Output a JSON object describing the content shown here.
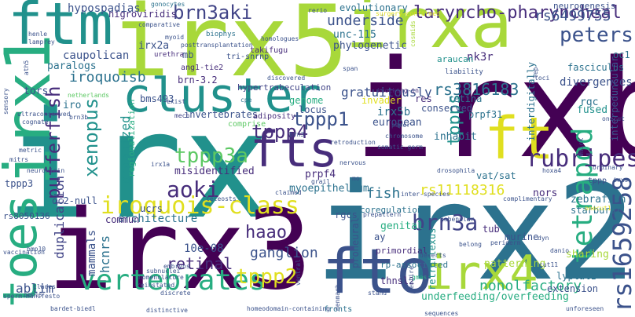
{
  "words": [
    {
      "text": "irx",
      "cls": "c-t"
    },
    {
      "text": "irx5",
      "cls": "c-yg"
    },
    {
      "text": "irxb",
      "cls": "c-p"
    },
    {
      "text": "irx3",
      "cls": "c-p"
    },
    {
      "text": "irx2",
      "cls": "c-bt"
    },
    {
      "text": "irxa",
      "cls": "c-yg"
    },
    {
      "text": "ftm",
      "cls": "c-t"
    },
    {
      "text": "irx1",
      "cls": "c-tg"
    },
    {
      "text": "toes",
      "cls": "c-tg"
    },
    {
      "text": "cluster",
      "cls": "c-t"
    },
    {
      "text": "fts",
      "cls": "c-dp"
    },
    {
      "text": "ft",
      "cls": "c-y"
    },
    {
      "text": "fto",
      "cls": "c-b"
    },
    {
      "text": "irx4",
      "cls": "c-yg"
    },
    {
      "text": "vertebrates",
      "cls": "c-tg"
    },
    {
      "text": "iroquois-class",
      "cls": "c-y"
    },
    {
      "text": "aoki",
      "cls": "c-dp"
    },
    {
      "text": "tppp3a",
      "cls": "c-g"
    },
    {
      "text": "tppp4",
      "cls": "c-dp"
    },
    {
      "text": "tetrapod",
      "cls": "c-tg"
    },
    {
      "text": "rs1659258",
      "cls": "c-b"
    },
    {
      "text": "brn3a",
      "cls": "c-db"
    },
    {
      "text": "tppp2",
      "cls": "c-y"
    },
    {
      "text": "brn3aki",
      "cls": "c-db"
    },
    {
      "text": "laryncho-pharyncheal",
      "cls": "c-dp"
    },
    {
      "text": "peters",
      "cls": "c-b"
    },
    {
      "text": "rubripes",
      "cls": "c-dp"
    },
    {
      "text": "rs11118316",
      "cls": "c-y"
    },
    {
      "text": "xenopus",
      "cls": "c-t"
    },
    {
      "text": "pufferfish",
      "cls": "c-dp"
    },
    {
      "text": "tppp1",
      "cls": "c-b"
    },
    {
      "text": "tppps",
      "cls": "c-t"
    },
    {
      "text": "haao",
      "cls": "c-dp"
    },
    {
      "text": "retinal",
      "cls": "c-dp"
    },
    {
      "text": "ganglion",
      "cls": "c-b"
    },
    {
      "text": "nonolfactory",
      "cls": "c-tg"
    },
    {
      "text": "rs3816183",
      "cls": "c-bt"
    },
    {
      "text": "rs6499755",
      "cls": "c-b"
    },
    {
      "text": "underside",
      "cls": "c-b"
    },
    {
      "text": "gratuitously",
      "cls": "c-b"
    },
    {
      "text": "hypospadias",
      "cls": "c-b"
    },
    {
      "text": "iroquoisb",
      "cls": "c-bt"
    },
    {
      "text": "fish",
      "cls": "c-bt"
    },
    {
      "text": "duplication",
      "cls": "c-db"
    },
    {
      "text": "mammals",
      "cls": "c-b"
    },
    {
      "text": "hcnrs",
      "cls": "c-bt"
    },
    {
      "text": "architecture",
      "cls": "c-bt"
    },
    {
      "text": "10e-08",
      "cls": "c-b"
    },
    {
      "text": "ablim",
      "cls": "c-b"
    },
    {
      "text": "organized",
      "cls": "c-t"
    },
    {
      "text": "misidentified",
      "cls": "c-dp"
    },
    {
      "text": "caupolican",
      "cls": "c-b"
    },
    {
      "text": "paralogs",
      "cls": "c-bt"
    },
    {
      "text": "irx2a",
      "cls": "c-b"
    },
    {
      "text": "tors",
      "cls": "c-b"
    },
    {
      "text": "nigroviridis",
      "cls": "c-dp"
    },
    {
      "text": "unc-115",
      "cls": "c-bt"
    },
    {
      "text": "phylogenetic",
      "cls": "c-b"
    },
    {
      "text": "evolutionary",
      "cls": "c-bt"
    },
    {
      "text": "nk3r",
      "cls": "c-dp"
    },
    {
      "text": "araucan",
      "cls": "c-t"
    },
    {
      "text": "neurogenesis",
      "cls": "c-b"
    },
    {
      "text": "oc1",
      "cls": "c-bt"
    },
    {
      "text": "fasciculus",
      "cls": "c-bt"
    },
    {
      "text": "divergences",
      "cls": "c-b"
    },
    {
      "text": "rgc",
      "cls": "c-bt"
    },
    {
      "text": "fused",
      "cls": "c-t"
    },
    {
      "text": "interpeduncular",
      "cls": "c-b"
    },
    {
      "text": "irx5b",
      "cls": "c-bt"
    },
    {
      "text": "european",
      "cls": "c-b"
    },
    {
      "text": "inhabit",
      "cls": "c-bt"
    },
    {
      "text": "prpf31",
      "cls": "c-bt"
    },
    {
      "text": "interdigitally",
      "cls": "c-bt"
    },
    {
      "text": "retina",
      "cls": "c-bt"
    },
    {
      "text": "res",
      "cls": "c-dp"
    },
    {
      "text": "conserved",
      "cls": "c-b"
    },
    {
      "text": "invader",
      "cls": "c-y"
    },
    {
      "text": "genome",
      "cls": "c-tg"
    },
    {
      "text": "locus",
      "cls": "c-b"
    },
    {
      "text": "hypertrabeculation",
      "cls": "c-db"
    },
    {
      "text": "brn-3.2",
      "cls": "c-dp"
    },
    {
      "text": "bms493",
      "cls": "c-b"
    },
    {
      "text": "invertebrates",
      "cls": "c-b"
    },
    {
      "text": "regionalization",
      "cls": "c-tg"
    },
    {
      "text": "prpf4",
      "cls": "c-dp"
    },
    {
      "text": "myoepithelium",
      "cls": "c-bt"
    },
    {
      "text": "zebrafish",
      "cls": "c-bt"
    },
    {
      "text": "starburst",
      "cls": "c-bt"
    },
    {
      "text": "nors",
      "cls": "c-dp"
    },
    {
      "text": "murine",
      "cls": "c-b"
    },
    {
      "text": "genital",
      "cls": "c-tg"
    },
    {
      "text": "proneural",
      "cls": "c-b"
    },
    {
      "text": "tub",
      "cls": "c-dp"
    },
    {
      "text": "patterning",
      "cls": "c-yg"
    },
    {
      "text": "sharing",
      "cls": "c-yg"
    },
    {
      "text": "lyplal1",
      "cls": "c-bt"
    },
    {
      "text": "extension",
      "cls": "c-b"
    },
    {
      "text": "underfeeding/overfeeding",
      "cls": "c-tg"
    },
    {
      "text": "thnsl2",
      "cls": "c-dp"
    },
    {
      "text": "retroflexus",
      "cls": "c-t"
    },
    {
      "text": "rp-associated",
      "cls": "c-bt"
    },
    {
      "text": "rs8050136",
      "cls": "c-b"
    },
    {
      "text": "tppp3",
      "cls": "c-b"
    },
    {
      "text": "oc2-null",
      "cls": "c-b"
    },
    {
      "text": "vat/sat",
      "cls": "c-bt"
    },
    {
      "text": "ucrs",
      "cls": "c-b"
    },
    {
      "text": "commun",
      "cls": "c-dp"
    },
    {
      "text": "rgcs",
      "cls": "c-b"
    },
    {
      "text": "fronts",
      "cls": "c-bt"
    },
    {
      "text": "primordial",
      "cls": "c-dp"
    },
    {
      "text": "coregulation",
      "cls": "c-bt"
    },
    {
      "text": "mb",
      "cls": "c-b"
    },
    {
      "text": "iro",
      "cls": "c-bt"
    },
    {
      "text": "adiposity",
      "cls": "c-dp"
    },
    {
      "text": "comprise",
      "cls": "c-g"
    },
    {
      "text": "ang1-tie2",
      "cls": "c-dp"
    },
    {
      "text": "tri-snrnp",
      "cls": "c-b"
    },
    {
      "text": "takifugu",
      "cls": "c-dp"
    },
    {
      "text": "biophys",
      "cls": "c-bt"
    },
    {
      "text": "urethra",
      "cls": "c-dp"
    },
    {
      "text": "comparative",
      "cls": "c-b"
    },
    {
      "text": "gonocytes",
      "cls": "c-bt"
    },
    {
      "text": "rerio",
      "cls": "c-b"
    },
    {
      "text": "surgery-confirmed",
      "cls": "c-y"
    },
    {
      "text": "cosmids",
      "cls": "c-yg"
    },
    {
      "text": "liability",
      "cls": "c-b"
    },
    {
      "text": "span",
      "cls": "c-b"
    },
    {
      "text": "netherlands",
      "cls": "c-g"
    },
    {
      "text": "henle",
      "cls": "c-b"
    },
    {
      "text": "lamprey",
      "cls": "c-b"
    },
    {
      "text": "sensory",
      "cls": "c-b"
    },
    {
      "text": "ultraconserved",
      "cls": "c-b"
    },
    {
      "text": "cognate",
      "cls": "c-b"
    },
    {
      "text": "brn3b",
      "cls": "c-b"
    },
    {
      "text": "mech",
      "cls": "c-db"
    },
    {
      "text": "exist",
      "cls": "c-b"
    },
    {
      "text": "cpe",
      "cls": "c-bt"
    },
    {
      "text": "metric",
      "cls": "c-b"
    },
    {
      "text": "neurokinin",
      "cls": "c-b"
    },
    {
      "text": "irx1a",
      "cls": "c-b"
    },
    {
      "text": "grail",
      "cls": "c-b"
    },
    {
      "text": "teleosts",
      "cls": "c-b"
    },
    {
      "text": "claimed",
      "cls": "c-b"
    },
    {
      "text": "chromosome",
      "cls": "c-b"
    },
    {
      "text": "knocking-in",
      "cls": "c-dp"
    },
    {
      "text": "paper",
      "cls": "c-b"
    },
    {
      "text": "loci",
      "cls": "c-b"
    },
    {
      "text": "onecut",
      "cls": "c-b"
    },
    {
      "text": "onecut1",
      "cls": "c-y"
    },
    {
      "text": "hoxa4",
      "cls": "c-b"
    },
    {
      "text": "ordinary",
      "cls": "c-b"
    },
    {
      "text": "chick",
      "cls": "c-b"
    },
    {
      "text": "nervous",
      "cls": "c-b"
    },
    {
      "text": "drosophila",
      "cls": "c-b"
    },
    {
      "text": "inter-species",
      "cls": "c-b"
    },
    {
      "text": "complimentary",
      "cls": "c-b"
    },
    {
      "text": "prepattern",
      "cls": "c-b"
    },
    {
      "text": "habenular",
      "cls": "c-b"
    },
    {
      "text": "periderm",
      "cls": "c-b"
    },
    {
      "text": "dyn",
      "cls": "c-b"
    },
    {
      "text": "belong",
      "cls": "c-b"
    },
    {
      "text": "deserts",
      "cls": "c-b"
    },
    {
      "text": "embryos",
      "cls": "c-b"
    },
    {
      "text": "subnuclei",
      "cls": "c-b"
    },
    {
      "text": "nomenclature",
      "cls": "c-b"
    },
    {
      "text": "reinstated",
      "cls": "c-b"
    },
    {
      "text": "discrete",
      "cls": "c-b"
    },
    {
      "text": "distinctive",
      "cls": "c-b"
    },
    {
      "text": "homeodomain-containing",
      "cls": "c-b"
    },
    {
      "text": "bardet-biedl",
      "cls": "c-b"
    },
    {
      "text": "penis",
      "cls": "c-b"
    },
    {
      "text": "clades",
      "cls": "c-b"
    },
    {
      "text": "bmp10",
      "cls": "c-b"
    },
    {
      "text": "gmas",
      "cls": "c-tg"
    },
    {
      "text": "stand",
      "cls": "c-b"
    },
    {
      "text": "entire",
      "cls": "c-b"
    },
    {
      "text": "ventral",
      "cls": "c-b"
    },
    {
      "text": "cut11",
      "cls": "c-b"
    },
    {
      "text": "danio",
      "cls": "c-b"
    },
    {
      "text": "unforeseen",
      "cls": "c-b"
    },
    {
      "text": "sperm-manifesto",
      "cls": "c-b"
    },
    {
      "text": "ath5",
      "cls": "c-b"
    },
    {
      "text": "myoid",
      "cls": "c-b"
    },
    {
      "text": "discovered",
      "cls": "c-b"
    },
    {
      "text": "homologues",
      "cls": "c-b"
    },
    {
      "text": "posttransplantation",
      "cls": "c-b"
    },
    {
      "text": "somatic-germ",
      "cls": "c-b"
    },
    {
      "text": "lep",
      "cls": "c-b"
    },
    {
      "text": "vaccination",
      "cls": "c-b"
    },
    {
      "text": "mitrs",
      "cls": "c-b"
    },
    {
      "text": "denmark",
      "cls": "c-b"
    },
    {
      "text": "sequences",
      "cls": "c-b"
    },
    {
      "text": "retroduction",
      "cls": "c-b"
    },
    {
      "text": "brn3",
      "cls": "c-b"
    },
    {
      "text": "mo",
      "cls": "c-b"
    },
    {
      "text": "ay",
      "cls": "c-b"
    },
    {
      "text": "tppp",
      "cls": "c-b"
    },
    {
      "text": "irxs",
      "cls": "c-b"
    }
  ]
}
